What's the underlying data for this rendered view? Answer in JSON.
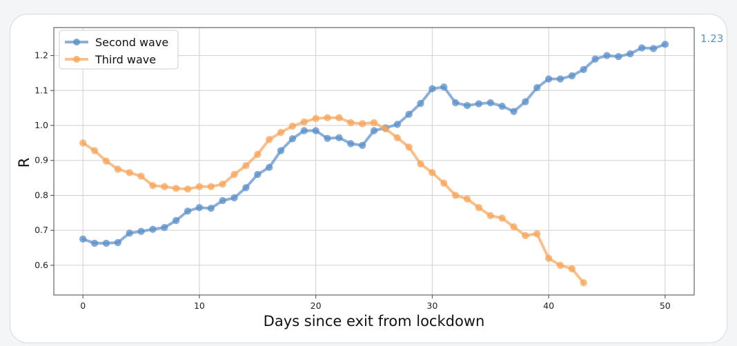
{
  "chart_data": {
    "type": "line",
    "title": "",
    "xlabel": "Days since exit from lockdown",
    "ylabel": "R",
    "xlim": [
      -2.5,
      52.5
    ],
    "ylim": [
      0.515,
      1.28
    ],
    "xticks": [
      0,
      10,
      20,
      30,
      40,
      50
    ],
    "yticks": [
      0.6,
      0.7,
      0.8,
      0.9,
      1.0,
      1.1,
      1.2
    ],
    "ytick_labels": [
      "0.6",
      "0.7",
      "0.8",
      "0.9",
      "1.0",
      "1.1",
      "1.2"
    ],
    "grid": true,
    "legend_position": "top-left",
    "last_value_label": "1.23",
    "series": [
      {
        "name": "Second wave",
        "color": "#5b8fc7",
        "x": [
          0,
          1,
          2,
          3,
          4,
          5,
          6,
          7,
          8,
          9,
          10,
          11,
          12,
          13,
          14,
          15,
          16,
          17,
          18,
          19,
          20,
          21,
          22,
          23,
          24,
          25,
          26,
          27,
          28,
          29,
          30,
          31,
          32,
          33,
          34,
          35,
          36,
          37,
          38,
          39,
          40,
          41,
          42,
          43,
          44,
          45,
          46,
          47,
          48,
          49,
          50
        ],
        "values": [
          0.675,
          0.663,
          0.663,
          0.665,
          0.692,
          0.697,
          0.703,
          0.708,
          0.728,
          0.755,
          0.765,
          0.763,
          0.785,
          0.793,
          0.822,
          0.86,
          0.88,
          0.928,
          0.962,
          0.985,
          0.985,
          0.963,
          0.965,
          0.948,
          0.943,
          0.985,
          0.993,
          1.003,
          1.032,
          1.063,
          1.105,
          1.11,
          1.065,
          1.057,
          1.062,
          1.065,
          1.055,
          1.04,
          1.068,
          1.108,
          1.133,
          1.133,
          1.142,
          1.16,
          1.19,
          1.2,
          1.197,
          1.205,
          1.222,
          1.22,
          1.232
        ]
      },
      {
        "name": "Third wave",
        "color": "#f5a55c",
        "x": [
          0,
          1,
          2,
          3,
          4,
          5,
          6,
          7,
          8,
          9,
          10,
          11,
          12,
          13,
          14,
          15,
          16,
          17,
          18,
          19,
          20,
          21,
          22,
          23,
          24,
          25,
          26,
          27,
          28,
          29,
          30,
          31,
          32,
          33,
          34,
          35,
          36,
          37,
          38,
          39,
          40,
          41,
          42,
          43
        ],
        "values": [
          0.95,
          0.928,
          0.898,
          0.875,
          0.865,
          0.855,
          0.828,
          0.825,
          0.82,
          0.818,
          0.825,
          0.825,
          0.832,
          0.86,
          0.885,
          0.917,
          0.96,
          0.98,
          0.998,
          1.01,
          1.02,
          1.022,
          1.022,
          1.008,
          1.005,
          1.008,
          0.99,
          0.965,
          0.938,
          0.89,
          0.865,
          0.835,
          0.8,
          0.79,
          0.765,
          0.742,
          0.735,
          0.71,
          0.685,
          0.69,
          0.62,
          0.6,
          0.59,
          0.55
        ]
      }
    ]
  }
}
